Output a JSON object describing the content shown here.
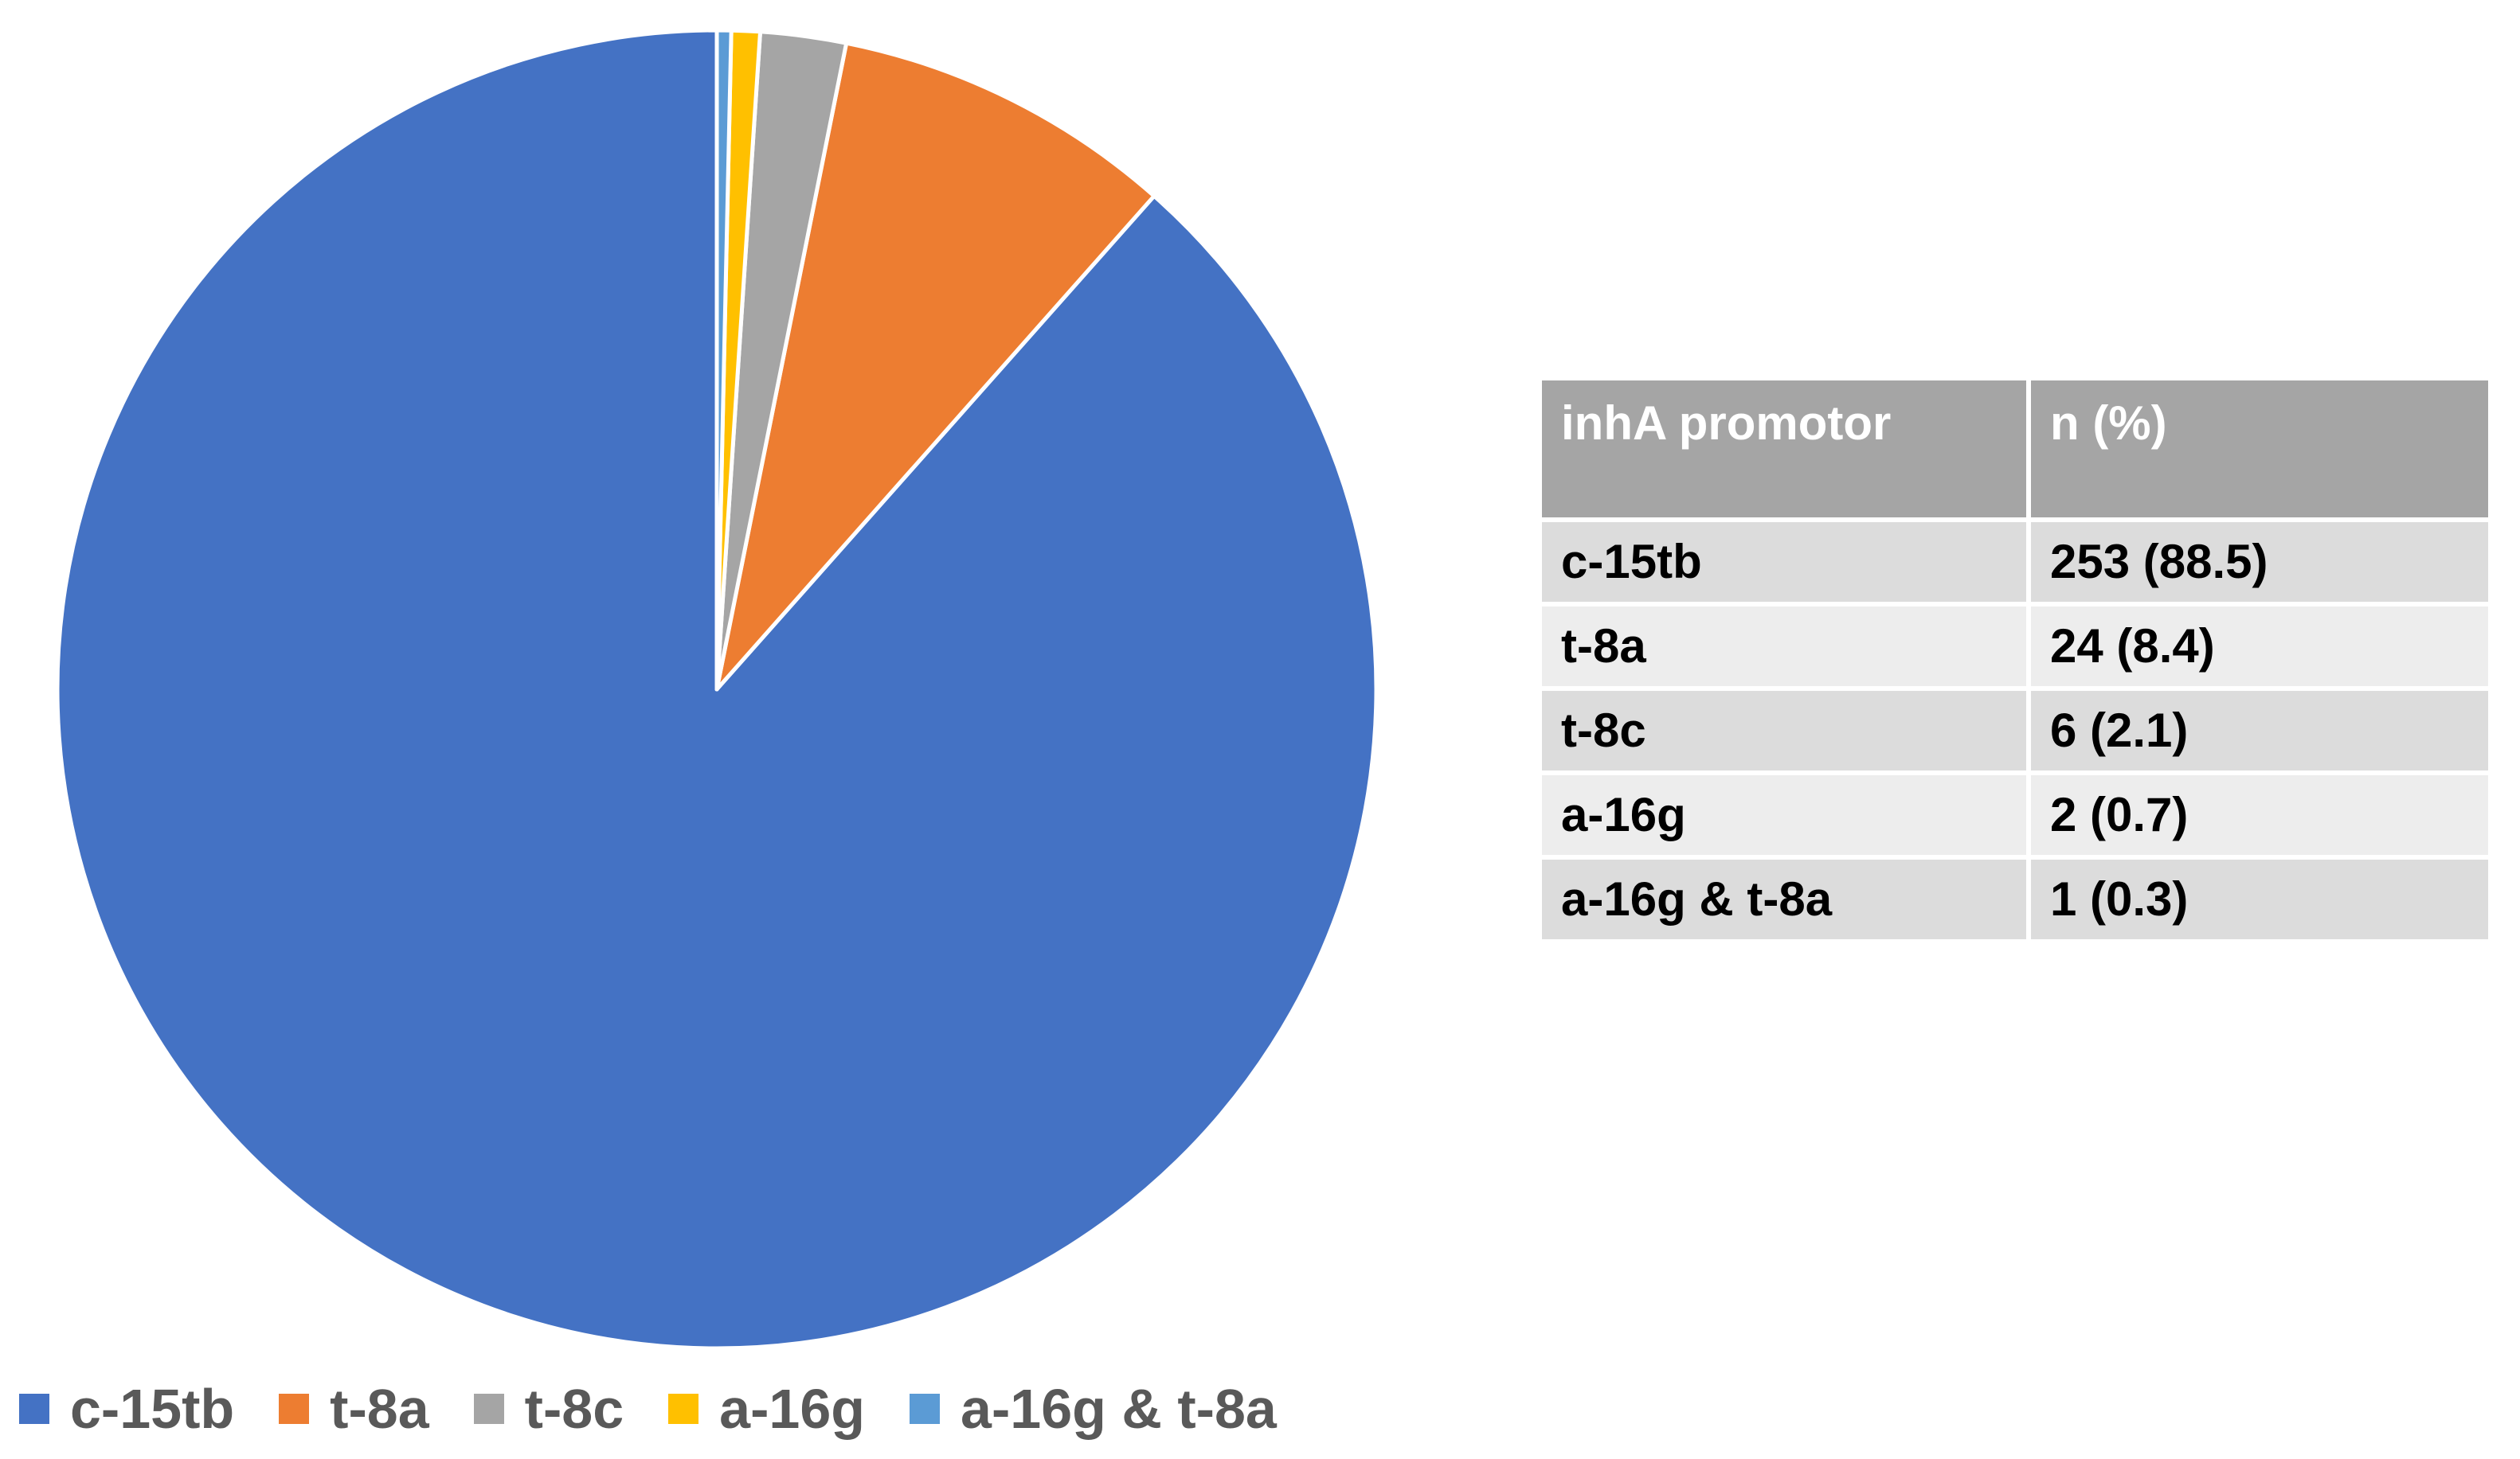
{
  "chart_data": {
    "type": "pie",
    "categories": [
      "c-15tb",
      "t-8a",
      "t-8c",
      "a-16g",
      "a-16g & t-8a"
    ],
    "values": [
      253,
      24,
      6,
      2,
      1
    ],
    "percentages": [
      88.5,
      8.4,
      2.1,
      0.7,
      0.3
    ],
    "colors": [
      "#4472c4",
      "#ed7d31",
      "#a5a5a5",
      "#ffc000",
      "#5b9bd5"
    ],
    "start_angle": "12 o'clock",
    "direction": "counterclockwise",
    "legend_position": "bottom",
    "title": ""
  },
  "table": {
    "headers": [
      "inhA promotor",
      "n (%)"
    ],
    "rows": [
      [
        "c-15tb",
        "253 (88.5)"
      ],
      [
        "t-8a",
        "24 (8.4)"
      ],
      [
        "t-8c",
        "6 (2.1)"
      ],
      [
        "a-16g",
        "2 (0.7)"
      ],
      [
        "a-16g & t-8a",
        "1 (0.3)"
      ]
    ]
  }
}
